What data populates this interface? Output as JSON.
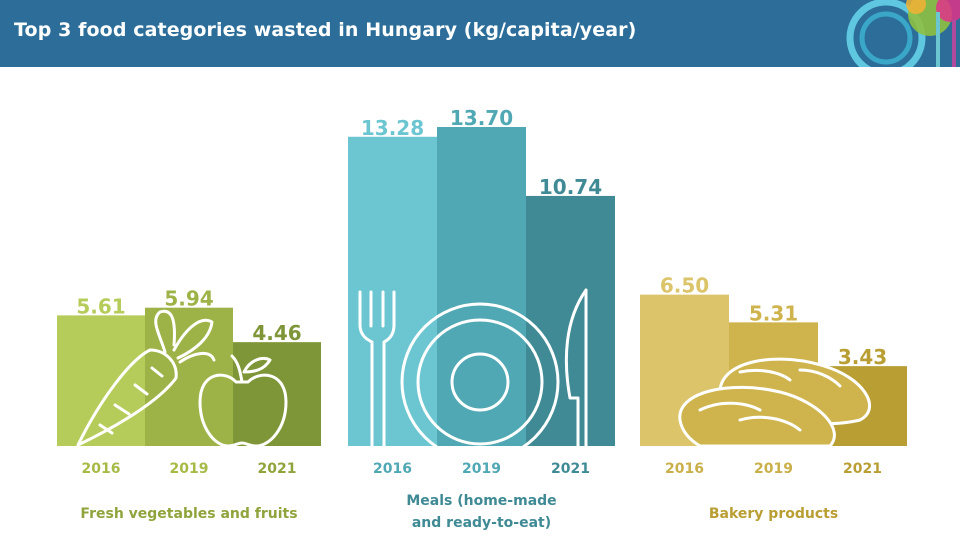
{
  "header": {
    "title": "Top 3 food categories wasted in Hungary (kg/capita/year)",
    "background_color": "#2c6e99"
  },
  "chart_data": {
    "type": "bar",
    "title": "Top 3 food categories wasted in Hungary (kg/capita/year)",
    "unit": "kg/capita/year",
    "years": [
      "2016",
      "2019",
      "2021"
    ],
    "groups": [
      {
        "name": "Fresh vegetables and fruits",
        "label_lines": [
          "Fresh vegetables and fruits"
        ],
        "values": [
          5.61,
          5.94,
          4.46
        ],
        "colors": [
          "#b5cc5a",
          "#9db347",
          "#7f9638"
        ],
        "label_color": "#8fa43c",
        "year_color": "#a6ba46",
        "icon": "carrot-apple-icon"
      },
      {
        "name": "Meals (home-made and ready-to-eat)",
        "label_lines": [
          "Meals (home-made",
          "and ready-to-eat)"
        ],
        "values": [
          13.28,
          13.7,
          10.74
        ],
        "colors": [
          "#6cc6d1",
          "#4fa8b3",
          "#3f8a95"
        ],
        "label_color": "#3f8a95",
        "year_color": "#4fa8b3",
        "icon": "plate-cutlery-icon"
      },
      {
        "name": "Bakery products",
        "label_lines": [
          "Bakery products"
        ],
        "values": [
          6.5,
          5.31,
          3.43
        ],
        "colors": [
          "#dcc46a",
          "#cfb44d",
          "#b99e33"
        ],
        "label_color": "#b99e33",
        "year_color": "#c9b04a",
        "icon": "bread-icon"
      }
    ]
  }
}
